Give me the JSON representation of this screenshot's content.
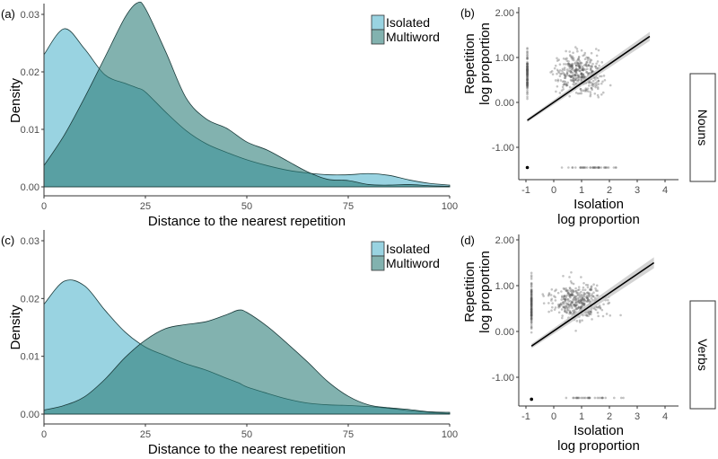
{
  "colors": {
    "isolated": "#99d3e1",
    "multiword": "#2e7f7a",
    "line": "#000000",
    "point": "#555555",
    "ribbon": "#c8c8c8"
  },
  "chart_data": [
    {
      "panel": "(a)",
      "type": "area",
      "xlabel": "Distance to the nearest repetition",
      "ylabel": "Density",
      "xlim": [
        0,
        100
      ],
      "ylim": [
        0,
        0.032
      ],
      "xticks": [
        "0",
        "25",
        "50",
        "75",
        "100"
      ],
      "xtick_values": [
        0,
        25,
        50,
        75,
        100
      ],
      "yticks": [
        "0.00",
        "0.01",
        "0.02",
        "0.03"
      ],
      "ytick_values": [
        0,
        0.01,
        0.02,
        0.03
      ],
      "legend": [
        "Isolated",
        "Multiword"
      ],
      "legend_position": "top-right",
      "x": [
        0,
        5,
        10,
        15,
        20,
        23,
        25,
        30,
        35,
        40,
        45,
        50,
        55,
        60,
        65,
        70,
        75,
        80,
        85,
        90,
        95,
        100
      ],
      "series": [
        {
          "name": "Isolated",
          "values": [
            0.023,
            0.0275,
            0.024,
            0.0195,
            0.018,
            0.0172,
            0.0165,
            0.013,
            0.0098,
            0.0075,
            0.006,
            0.0047,
            0.0037,
            0.0029,
            0.0024,
            0.0021,
            0.0021,
            0.0023,
            0.002,
            0.0012,
            0.0006,
            0.0003
          ]
        },
        {
          "name": "Multiword",
          "values": [
            0.0037,
            0.009,
            0.0155,
            0.0225,
            0.0295,
            0.032,
            0.031,
            0.0235,
            0.0155,
            0.0118,
            0.0102,
            0.0078,
            0.0064,
            0.0045,
            0.0026,
            0.0013,
            0.0011,
            0.0004,
            0.0003,
            0.0004,
            0.0002,
            0.0001
          ]
        }
      ]
    },
    {
      "panel": "(c)",
      "type": "area",
      "xlabel": "Distance to the nearest repetition",
      "ylabel": "Density",
      "xlim": [
        0,
        100
      ],
      "ylim": [
        0,
        0.032
      ],
      "xticks": [
        "0",
        "25",
        "50",
        "75",
        "100"
      ],
      "xtick_values": [
        0,
        25,
        50,
        75,
        100
      ],
      "yticks": [
        "0.00",
        "0.01",
        "0.02",
        "0.03"
      ],
      "ytick_values": [
        0,
        0.01,
        0.02,
        0.03
      ],
      "legend": [
        "Isolated",
        "Multiword"
      ],
      "legend_position": "top-right",
      "x": [
        0,
        5,
        10,
        15,
        20,
        25,
        30,
        35,
        40,
        45,
        48,
        50,
        55,
        60,
        65,
        70,
        75,
        80,
        85,
        90,
        95,
        100
      ],
      "series": [
        {
          "name": "Isolated",
          "values": [
            0.019,
            0.023,
            0.0222,
            0.018,
            0.0142,
            0.0116,
            0.0101,
            0.0087,
            0.0076,
            0.0062,
            0.0054,
            0.0047,
            0.0036,
            0.0026,
            0.0019,
            0.0016,
            0.0015,
            0.0013,
            0.001,
            0.0006,
            0.0003,
            0.0001
          ]
        },
        {
          "name": "Multiword",
          "values": [
            0.0007,
            0.0015,
            0.003,
            0.006,
            0.0098,
            0.0128,
            0.0148,
            0.0155,
            0.016,
            0.0172,
            0.018,
            0.0176,
            0.0152,
            0.0122,
            0.009,
            0.0056,
            0.0031,
            0.0016,
            0.0011,
            0.0008,
            0.0004,
            0.0003
          ]
        }
      ]
    },
    {
      "panel": "(b)",
      "type": "scatter",
      "facet": "Nouns",
      "xlabel": [
        "Isolation",
        "log proportion"
      ],
      "ylabel": [
        "Repetition",
        "log proportion"
      ],
      "xlim": [
        -1.3,
        4.3
      ],
      "ylim": [
        -1.6,
        2.1
      ],
      "xticks": [
        "-1",
        "0",
        "1",
        "2",
        "3",
        "4"
      ],
      "xtick_values": [
        -1,
        0,
        1,
        2,
        3,
        4
      ],
      "yticks": [
        "-1.00",
        "0.00",
        "1.00",
        "2.00"
      ],
      "ytick_values": [
        -1,
        0,
        1,
        2
      ],
      "fit_line": {
        "x": [
          -0.95,
          3.45
        ],
        "y": [
          -0.4,
          1.47
        ],
        "ci_halfwidth": [
          0.04,
          0.1
        ]
      },
      "clusters": [
        {
          "x_mean": -0.95,
          "x_sd": 0.0,
          "y_mean": 0.65,
          "y_sd": 0.35,
          "n": 110
        },
        {
          "x_mean": 0.9,
          "x_sd": 0.7,
          "y_mean": 0.65,
          "y_sd": 0.33,
          "n": 380
        },
        {
          "x_mean": 1.4,
          "x_sd": 0.8,
          "y_mean": -1.45,
          "y_sd": 0.0,
          "n": 40
        }
      ],
      "outlier": {
        "x": -0.95,
        "y": -1.45
      }
    },
    {
      "panel": "(d)",
      "type": "scatter",
      "facet": "Verbs",
      "xlabel": [
        "Isolation",
        "log proportion"
      ],
      "ylabel": [
        "Repetition",
        "log proportion"
      ],
      "xlim": [
        -1.3,
        4.3
      ],
      "ylim": [
        -1.6,
        2.1
      ],
      "xticks": [
        "-1",
        "0",
        "1",
        "2",
        "3",
        "4"
      ],
      "xtick_values": [
        -1,
        0,
        1,
        2,
        3,
        4
      ],
      "yticks": [
        "-1.00",
        "0.00",
        "1.00",
        "2.00"
      ],
      "ytick_values": [
        -1,
        0,
        1,
        2
      ],
      "fit_line": {
        "x": [
          -0.8,
          3.6
        ],
        "y": [
          -0.32,
          1.5
        ],
        "ci_halfwidth": [
          0.05,
          0.12
        ]
      },
      "clusters": [
        {
          "x_mean": -0.8,
          "x_sd": 0.0,
          "y_mean": 0.55,
          "y_sd": 0.4,
          "n": 120
        },
        {
          "x_mean": 0.9,
          "x_sd": 0.75,
          "y_mean": 0.65,
          "y_sd": 0.33,
          "n": 380
        },
        {
          "x_mean": 1.4,
          "x_sd": 0.7,
          "y_mean": -1.45,
          "y_sd": 0.0,
          "n": 30
        }
      ],
      "outlier": {
        "x": -0.8,
        "y": -1.48
      }
    }
  ]
}
